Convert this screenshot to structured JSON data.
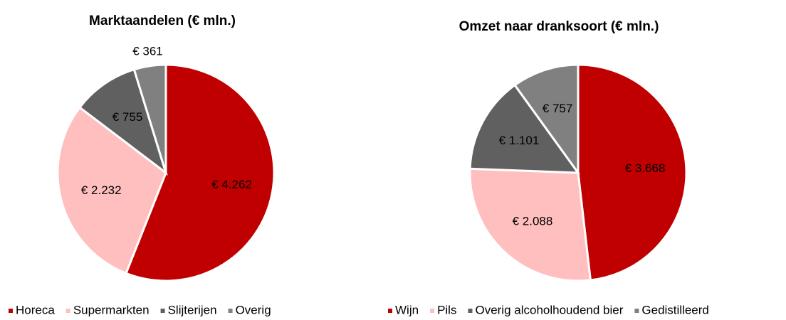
{
  "chart_data": [
    {
      "type": "pie",
      "title": "Marktaandelen (€ mln.)",
      "categories": [
        "Horeca",
        "Supermarkten",
        "Slijterijen",
        "Overig"
      ],
      "values": [
        4262,
        2232,
        755,
        361
      ],
      "value_labels": [
        "€ 4.262",
        "€ 2.232",
        "€ 755",
        "€ 361"
      ],
      "colors": [
        "#c00000",
        "#ffbfbf",
        "#606060",
        "#808080"
      ],
      "legend": "bottom"
    },
    {
      "type": "pie",
      "title": "Omzet naar dranksoort (€ mln.)",
      "categories": [
        "Wijn",
        "Pils",
        "Overig alcoholhoudend bier",
        "Gedistilleerd"
      ],
      "values": [
        3668,
        2088,
        1101,
        757
      ],
      "value_labels": [
        "€ 3.668",
        "€ 2.088",
        "€ 1.101",
        "€ 757"
      ],
      "colors": [
        "#c00000",
        "#ffbfbf",
        "#606060",
        "#808080"
      ],
      "legend": "bottom"
    }
  ]
}
